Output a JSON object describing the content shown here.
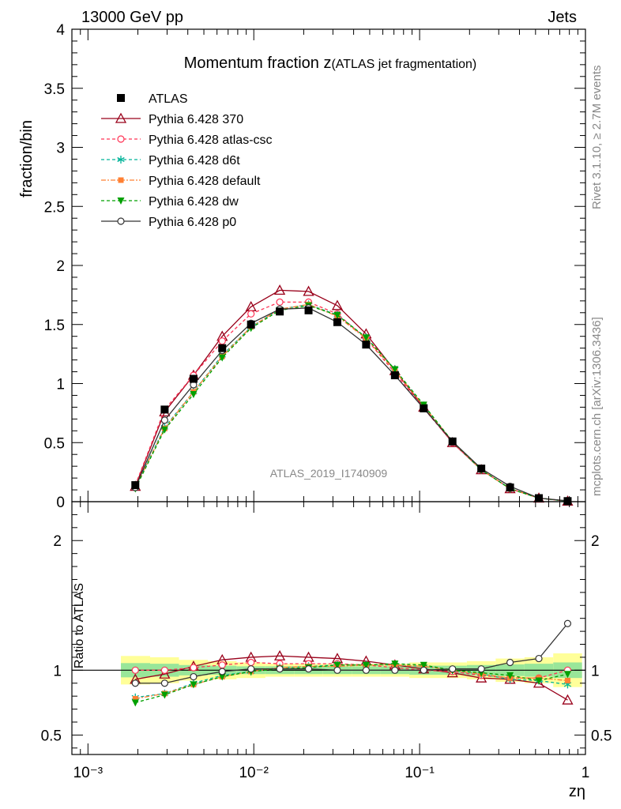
{
  "header": {
    "left": "13000 GeV pp",
    "right": "Jets"
  },
  "chart_data": {
    "type": "line",
    "title": "Momentum fraction z",
    "title_suffix": "(ATLAS jet fragmentation)",
    "xlabel": "zη",
    "ylabel": "fraction/bin",
    "ratio_ylabel": "Ratio to ATLAS",
    "x_scale": "log",
    "xlim": [
      0.0008,
      1.0
    ],
    "ylim": [
      0,
      4
    ],
    "ratio_ylim": [
      0.35,
      2.3
    ],
    "x_tick_labels": [
      "10⁻³",
      "10⁻²",
      "10⁻¹",
      "1"
    ],
    "y_tick_labels": [
      "0",
      "0.5",
      "1",
      "1.5",
      "2",
      "2.5",
      "3",
      "3.5",
      "4"
    ],
    "ratio_tick_labels": [
      "0.5",
      "1",
      "2"
    ],
    "analysis_label": "ATLAS_2019_I1740909",
    "side_labels": [
      "Rivet 3.1.10, ≥ 2.7M events",
      "mcplots.cern.ch [arXiv:1306.3436]"
    ],
    "legend_position": "top-left",
    "x": [
      0.00193,
      0.0029,
      0.00433,
      0.00645,
      0.00962,
      0.01434,
      0.02139,
      0.0319,
      0.04757,
      0.07096,
      0.10582,
      0.15783,
      0.2354,
      0.35107,
      0.5236,
      0.78089
    ],
    "band_edges": [
      0.00158,
      0.00237,
      0.00354,
      0.00528,
      0.00787,
      0.01174,
      0.01751,
      0.02612,
      0.03895,
      0.05809,
      0.08664,
      0.12922,
      0.19272,
      0.28743,
      0.42868,
      0.63934,
      0.95353
    ],
    "band_inner": [
      0.055,
      0.05,
      0.04,
      0.035,
      0.03,
      0.03,
      0.03,
      0.03,
      0.03,
      0.03,
      0.035,
      0.035,
      0.04,
      0.045,
      0.05,
      0.06
    ],
    "band_outer": [
      0.11,
      0.1,
      0.08,
      0.07,
      0.06,
      0.05,
      0.05,
      0.05,
      0.05,
      0.05,
      0.06,
      0.06,
      0.07,
      0.09,
      0.1,
      0.13
    ],
    "series": [
      {
        "name": "ATLAS",
        "role": "data",
        "color": "#000000",
        "marker": "square",
        "values": [
          0.14,
          0.78,
          1.04,
          1.3,
          1.5,
          1.61,
          1.62,
          1.52,
          1.33,
          1.07,
          0.79,
          0.51,
          0.28,
          0.12,
          0.03,
          0.005
        ],
        "ratio": [
          1,
          1,
          1,
          1,
          1,
          1,
          1,
          1,
          1,
          1,
          1,
          1,
          1,
          1,
          1,
          1
        ]
      },
      {
        "name": "Pythia 6.428 370",
        "color": "#99001a",
        "marker": "triangle-open",
        "dash": "",
        "values": [
          0.13,
          0.76,
          1.07,
          1.4,
          1.65,
          1.79,
          1.78,
          1.66,
          1.42,
          1.11,
          0.8,
          0.5,
          0.27,
          0.11,
          0.03,
          0.004
        ],
        "ratio": [
          0.93,
          0.97,
          1.03,
          1.08,
          1.1,
          1.11,
          1.1,
          1.09,
          1.07,
          1.04,
          1.01,
          0.98,
          0.94,
          0.93,
          0.9,
          0.77
        ]
      },
      {
        "name": "Pythia 6.428 atlas-csc",
        "color": "#ff3355",
        "marker": "circle-open",
        "dash": "4,3",
        "values": [
          0.14,
          0.78,
          1.07,
          1.36,
          1.59,
          1.69,
          1.69,
          1.59,
          1.38,
          1.09,
          0.79,
          0.5,
          0.27,
          0.11,
          0.03,
          0.005
        ],
        "ratio": [
          1.0,
          1.0,
          1.02,
          1.04,
          1.06,
          1.05,
          1.05,
          1.05,
          1.04,
          1.02,
          1.0,
          0.99,
          0.96,
          0.94,
          0.94,
          1.0
        ]
      },
      {
        "name": "Pythia 6.428 d6t",
        "color": "#00b399",
        "marker": "star",
        "dash": "4,3",
        "values": [
          0.12,
          0.63,
          0.93,
          1.24,
          1.48,
          1.63,
          1.67,
          1.58,
          1.39,
          1.12,
          0.81,
          0.51,
          0.27,
          0.11,
          0.03,
          0.004
        ],
        "ratio": [
          0.79,
          0.82,
          0.9,
          0.96,
          0.99,
          1.02,
          1.03,
          1.04,
          1.04,
          1.04,
          1.03,
          1.0,
          0.97,
          0.93,
          0.92,
          0.89
        ]
      },
      {
        "name": "Pythia 6.428 default",
        "color": "#ff8033",
        "marker": "square-filled",
        "dash": "6,2,2,2",
        "values": [
          0.12,
          0.62,
          0.93,
          1.23,
          1.48,
          1.63,
          1.67,
          1.57,
          1.38,
          1.11,
          0.81,
          0.51,
          0.27,
          0.11,
          0.03,
          0.005
        ],
        "ratio": [
          0.78,
          0.82,
          0.89,
          0.95,
          0.99,
          1.02,
          1.03,
          1.03,
          1.04,
          1.04,
          1.03,
          1.0,
          0.97,
          0.94,
          0.94,
          0.92
        ]
      },
      {
        "name": "Pythia 6.428 dw",
        "color": "#00a000",
        "marker": "triangle-down-filled",
        "dash": "4,3",
        "values": [
          0.11,
          0.61,
          0.91,
          1.22,
          1.47,
          1.62,
          1.66,
          1.58,
          1.39,
          1.12,
          0.82,
          0.51,
          0.27,
          0.11,
          0.03,
          0.005
        ],
        "ratio": [
          0.75,
          0.81,
          0.89,
          0.95,
          0.99,
          1.01,
          1.02,
          1.04,
          1.04,
          1.05,
          1.04,
          1.0,
          0.98,
          0.96,
          0.92,
          0.97
        ]
      },
      {
        "name": "Pythia 6.428 p0",
        "color": "#333333",
        "marker": "circle-open",
        "dash": "",
        "values": [
          0.12,
          0.69,
          0.99,
          1.28,
          1.51,
          1.63,
          1.64,
          1.52,
          1.33,
          1.07,
          0.79,
          0.51,
          0.28,
          0.13,
          0.03,
          0.007
        ],
        "ratio": [
          0.9,
          0.9,
          0.95,
          0.99,
          1.01,
          1.01,
          1.01,
          1.0,
          1.0,
          1.0,
          1.0,
          1.01,
          1.01,
          1.06,
          1.09,
          1.36
        ]
      }
    ]
  }
}
